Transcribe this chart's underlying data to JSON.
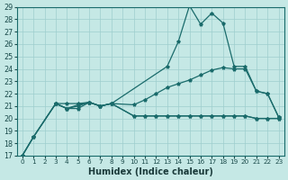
{
  "xlabel": "Humidex (Indice chaleur)",
  "background_color": "#c5e8e5",
  "grid_color": "#9ecece",
  "line_color": "#1a6b6b",
  "xlim_min": -0.5,
  "xlim_max": 23.5,
  "ylim_min": 17,
  "ylim_max": 29,
  "xticks": [
    0,
    1,
    2,
    3,
    4,
    5,
    6,
    7,
    8,
    9,
    10,
    11,
    12,
    13,
    14,
    15,
    16,
    17,
    18,
    19,
    20,
    21,
    22,
    23
  ],
  "yticks": [
    17,
    18,
    19,
    20,
    21,
    22,
    23,
    24,
    25,
    26,
    27,
    28,
    29
  ],
  "line_max_x": [
    0,
    1,
    3,
    4,
    5,
    6,
    7,
    8,
    13,
    14,
    15,
    16,
    17,
    18,
    19,
    20,
    21,
    22,
    23
  ],
  "line_max_y": [
    17,
    18.5,
    21.2,
    20.8,
    21.1,
    21.3,
    21.0,
    21.2,
    24.2,
    26.2,
    29.1,
    27.6,
    28.5,
    27.7,
    24.2,
    24.2,
    22.2,
    22.0,
    20.1
  ],
  "line_avg_x": [
    0,
    1,
    3,
    4,
    5,
    6,
    7,
    8,
    10,
    11,
    12,
    13,
    14,
    15,
    16,
    17,
    18,
    19,
    20,
    21,
    22,
    23
  ],
  "line_avg_y": [
    17,
    18.5,
    21.2,
    20.8,
    21.0,
    21.3,
    21.0,
    21.2,
    21.1,
    21.5,
    22.0,
    22.5,
    22.8,
    23.1,
    23.5,
    23.9,
    24.1,
    24.0,
    24.0,
    22.2,
    22.0,
    20.1
  ],
  "line_flat_x": [
    3,
    4,
    5,
    6,
    7,
    8,
    10,
    11,
    12,
    13,
    14,
    15,
    16,
    17,
    18,
    19,
    20,
    21,
    22,
    23
  ],
  "line_flat_y": [
    21.2,
    21.2,
    21.2,
    21.3,
    21.0,
    21.2,
    20.2,
    20.2,
    20.2,
    20.2,
    20.2,
    20.2,
    20.2,
    20.2,
    20.2,
    20.2,
    20.2,
    20.0,
    20.0,
    20.0
  ],
  "line_min_x": [
    0,
    1,
    3,
    4,
    5,
    6,
    7,
    8,
    10,
    11,
    12,
    13,
    14,
    15,
    16,
    17,
    18,
    19,
    20,
    21,
    22,
    23
  ],
  "line_min_y": [
    17,
    18.5,
    21.2,
    20.8,
    20.8,
    21.3,
    21.0,
    21.2,
    20.2,
    20.2,
    20.2,
    20.2,
    20.2,
    20.2,
    20.2,
    20.2,
    20.2,
    20.2,
    20.2,
    20.0,
    20.0,
    20.0
  ]
}
